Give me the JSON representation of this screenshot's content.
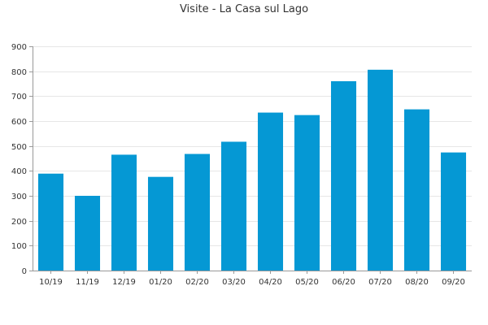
{
  "chart_data": {
    "type": "bar",
    "title": "Visite - La Casa sul Lago",
    "xlabel": "",
    "ylabel": "",
    "categories": [
      "10/19",
      "11/19",
      "12/19",
      "01/20",
      "02/20",
      "03/20",
      "04/20",
      "05/20",
      "06/20",
      "07/20",
      "08/20",
      "09/20"
    ],
    "values": [
      389,
      300,
      465,
      376,
      468,
      517,
      634,
      624,
      760,
      806,
      647,
      474
    ],
    "ylim": [
      0,
      900
    ],
    "yticks": [
      "0",
      "100",
      "200",
      "300",
      "400",
      "500",
      "600",
      "700",
      "800",
      "900"
    ],
    "grid": true,
    "legend": "none",
    "colors": {
      "bar": "#0598d4",
      "grid": "#e6e6e6",
      "axis": "#999999",
      "text": "#333333"
    }
  }
}
